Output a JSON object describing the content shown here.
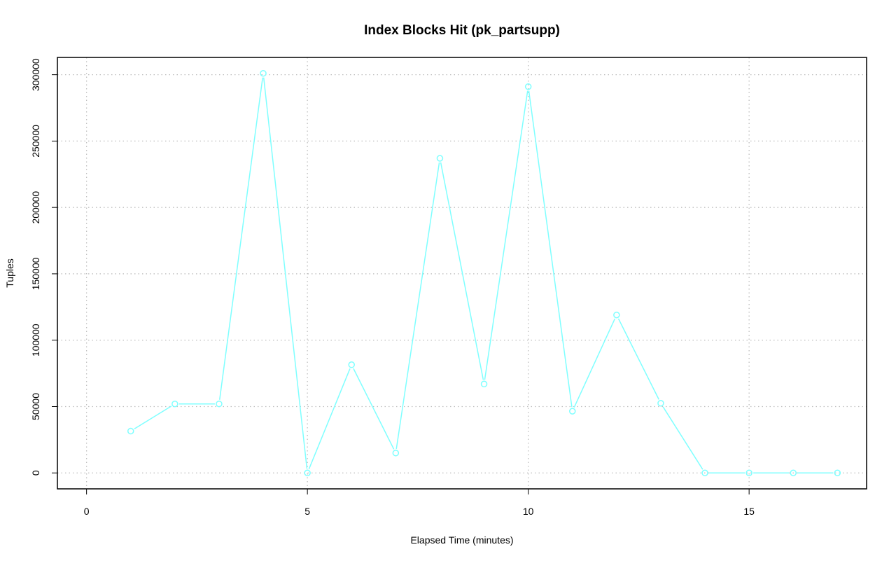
{
  "chart_data": {
    "type": "line",
    "title": "Index Blocks Hit (pk_partsupp)",
    "xlabel": "Elapsed Time (minutes)",
    "ylabel": "Tuples",
    "xlim": [
      -0.66,
      17.66
    ],
    "ylim": [
      -12000,
      313000
    ],
    "x_ticks": [
      0,
      5,
      10,
      15
    ],
    "y_ticks": [
      0,
      50000,
      100000,
      150000,
      200000,
      250000,
      300000
    ],
    "grid": true,
    "series": [
      {
        "color": "#7fffff",
        "marker": "open-circle",
        "x": [
          1,
          2,
          3,
          4,
          5,
          6,
          7,
          8,
          9,
          10,
          11,
          12,
          13,
          14,
          15,
          16,
          17
        ],
        "y": [
          31500,
          52000,
          52000,
          301000,
          0,
          81500,
          15000,
          237000,
          67000,
          291000,
          46500,
          119000,
          52500,
          0,
          0,
          0,
          0
        ]
      }
    ]
  }
}
